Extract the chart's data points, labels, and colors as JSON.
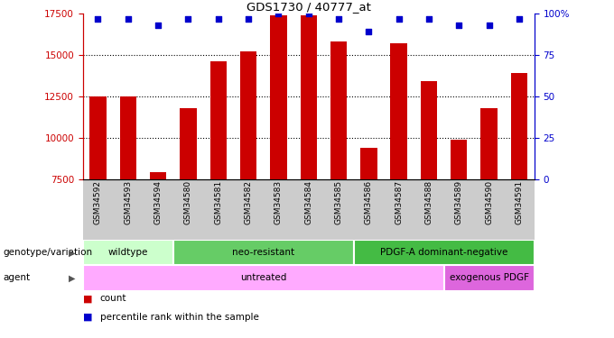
{
  "title": "GDS1730 / 40777_at",
  "samples": [
    "GSM34592",
    "GSM34593",
    "GSM34594",
    "GSM34580",
    "GSM34581",
    "GSM34582",
    "GSM34583",
    "GSM34584",
    "GSM34585",
    "GSM34586",
    "GSM34587",
    "GSM34588",
    "GSM34589",
    "GSM34590",
    "GSM34591"
  ],
  "counts": [
    12500,
    12500,
    7900,
    11800,
    14600,
    15200,
    17400,
    17400,
    15800,
    9400,
    15700,
    13400,
    9900,
    11800,
    13900
  ],
  "percentiles": [
    97,
    97,
    93,
    97,
    97,
    97,
    100,
    100,
    97,
    89,
    97,
    97,
    93,
    93,
    97
  ],
  "ymin": 7500,
  "ymax": 17500,
  "yticks": [
    7500,
    10000,
    12500,
    15000,
    17500
  ],
  "pct_yticks": [
    0,
    25,
    50,
    75,
    100
  ],
  "bar_color": "#cc0000",
  "dot_color": "#0000cc",
  "grid_lines": [
    10000,
    12500,
    15000
  ],
  "genotype_groups": [
    {
      "label": "wildtype",
      "start": 0,
      "end": 3,
      "color": "#ccffcc"
    },
    {
      "label": "neo-resistant",
      "start": 3,
      "end": 9,
      "color": "#66cc66"
    },
    {
      "label": "PDGF-A dominant-negative",
      "start": 9,
      "end": 15,
      "color": "#44bb44"
    }
  ],
  "agent_groups": [
    {
      "label": "untreated",
      "start": 0,
      "end": 12,
      "color": "#ffaaff"
    },
    {
      "label": "exogenous PDGF",
      "start": 12,
      "end": 15,
      "color": "#dd66dd"
    }
  ],
  "genotype_label": "genotype/variation",
  "agent_label": "agent",
  "legend_count": "count",
  "legend_pct": "percentile rank within the sample",
  "background_color": "#ffffff",
  "tick_bg_color": "#cccccc"
}
